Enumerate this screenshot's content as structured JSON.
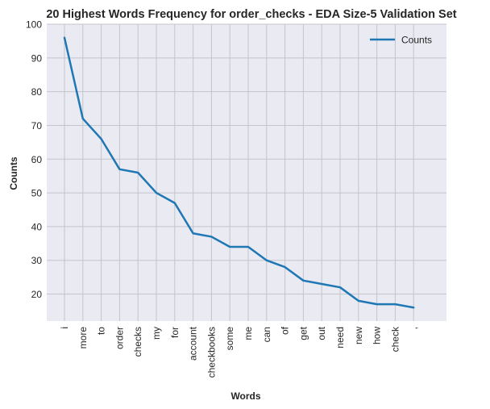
{
  "chart_data": {
    "type": "line",
    "title": "20 Highest Words Frequency for order_checks - EDA Size-5 Validation Set",
    "xlabel": "Words",
    "ylabel": "Counts",
    "categories": [
      "i",
      "more",
      "to",
      "order",
      "checks",
      "my",
      "for",
      "account",
      "checkbooks",
      "some",
      "me",
      "can",
      "of",
      "get",
      "out",
      "need",
      "new",
      "how",
      "check",
      ","
    ],
    "series": [
      {
        "name": "Counts",
        "values": [
          96,
          72,
          66,
          57,
          56,
          50,
          47,
          38,
          37,
          34,
          34,
          30,
          28,
          24,
          23,
          22,
          18,
          17,
          17,
          16
        ]
      }
    ],
    "yticks": [
      20,
      30,
      40,
      50,
      60,
      70,
      80,
      90,
      100
    ],
    "ylim": [
      12,
      100
    ],
    "grid": true,
    "legend_position": "top-right",
    "colors": {
      "line": "#1f77b4",
      "background": "#eaeaf2",
      "grid": "#c4c4cc"
    }
  }
}
